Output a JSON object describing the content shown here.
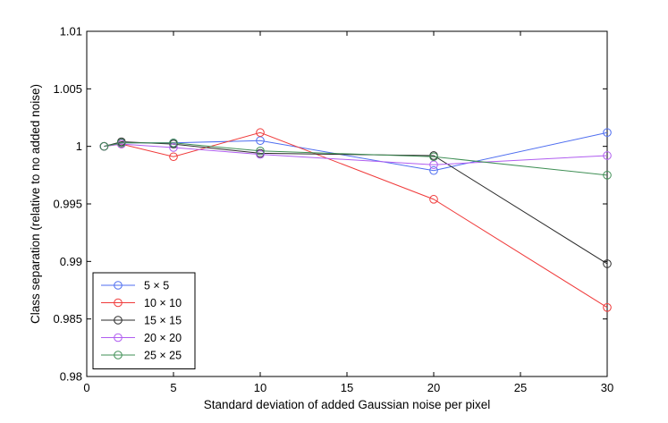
{
  "chart_data": {
    "type": "line",
    "title": "",
    "xlabel": "Standard deviation of added Gaussian noise per pixel",
    "ylabel": "Class separation (relative to no added noise)",
    "xlim": [
      0,
      30
    ],
    "ylim": [
      0.98,
      1.01
    ],
    "xticks": [
      0,
      5,
      10,
      15,
      20,
      25,
      30
    ],
    "yticks": [
      0.98,
      0.985,
      0.99,
      0.995,
      1,
      1.005,
      1.01
    ],
    "xtick_labels": [
      "0",
      "5",
      "10",
      "15",
      "20",
      "25",
      "30"
    ],
    "ytick_labels": [
      "0.98",
      "0.985",
      "0.99",
      "0.995",
      "1",
      "1.005",
      "1.01"
    ],
    "grid": false,
    "legend_position": "bottom-left",
    "series": [
      {
        "name": "5 × 5",
        "color": "#4f6ef0",
        "x": [
          1,
          2,
          5,
          10,
          20,
          30
        ],
        "y": [
          1.0,
          1.0003,
          1.0003,
          1.0005,
          0.9979,
          1.0012
        ]
      },
      {
        "name": "10 × 10",
        "color": "#f03a3a",
        "x": [
          1,
          2,
          5,
          10,
          20,
          30
        ],
        "y": [
          1.0,
          1.0002,
          0.9991,
          1.0012,
          0.9954,
          0.986
        ]
      },
      {
        "name": "15 × 15",
        "color": "#2a2a2a",
        "x": [
          1,
          2,
          5,
          10,
          20,
          30
        ],
        "y": [
          1.0,
          1.0004,
          1.0002,
          0.9994,
          0.9992,
          0.9898
        ]
      },
      {
        "name": "20 × 20",
        "color": "#b05df0",
        "x": [
          1,
          2,
          5,
          10,
          20,
          30
        ],
        "y": [
          1.0,
          1.0002,
          0.9999,
          0.9993,
          0.9984,
          0.9992
        ]
      },
      {
        "name": "25 × 25",
        "color": "#3f8f55",
        "x": [
          1,
          2,
          5,
          10,
          20,
          30
        ],
        "y": [
          1.0,
          1.0003,
          1.0003,
          0.9996,
          0.9991,
          0.9975
        ]
      }
    ]
  }
}
